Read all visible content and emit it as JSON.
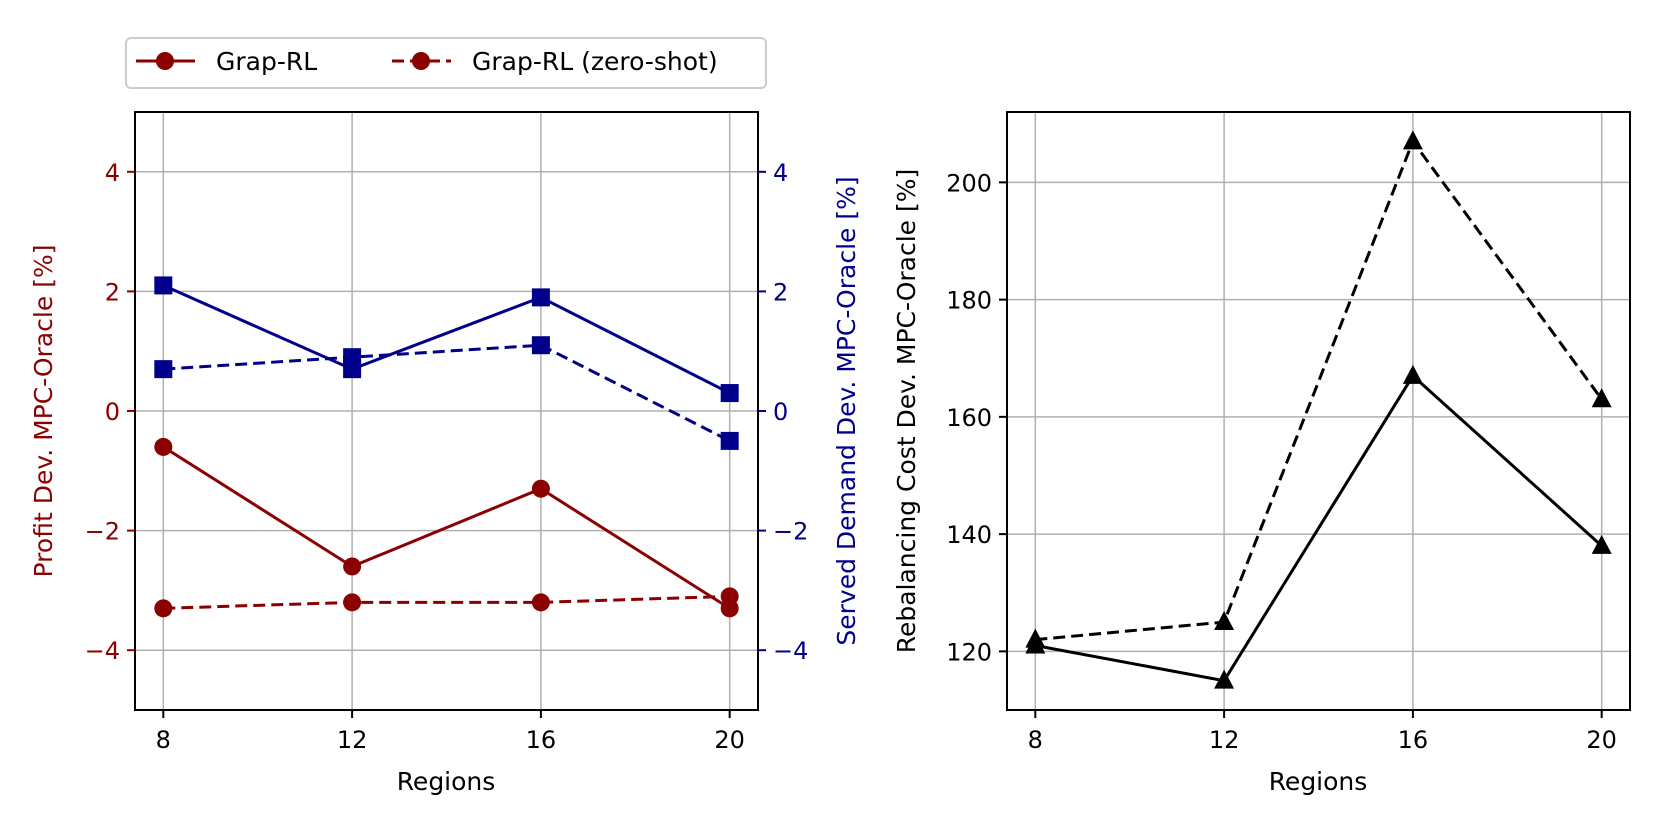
{
  "legend": {
    "entries": [
      {
        "label": "Grap-RL",
        "style": "solid"
      },
      {
        "label": "Grap-RL (zero-shot)",
        "style": "dashed"
      }
    ]
  },
  "colors": {
    "profit": "#8b0000",
    "served": "#00008b",
    "rebal": "#000000",
    "grid": "#b0b0b0"
  },
  "chart_data": [
    {
      "type": "line",
      "twin_y": true,
      "xlabel": "Regions",
      "ylabel_left": "Profit Dev. MPC-Oracle [%]",
      "ylabel_right": "Served Demand Dev. MPC-Oracle [%]",
      "x": [
        8,
        12,
        16,
        20
      ],
      "xticks": [
        "8",
        "12",
        "16",
        "20"
      ],
      "xlim": [
        7.4,
        20.6
      ],
      "ylim": [
        -5,
        5
      ],
      "yticks": [
        -4,
        -2,
        0,
        2,
        4
      ],
      "ytick_labels": [
        "−4",
        "−2",
        "0",
        "2",
        "4"
      ],
      "grid": true,
      "series": [
        {
          "name": "Grap-RL",
          "metric": "profit",
          "axis": "left",
          "style": "solid",
          "marker": "circle",
          "values": [
            -0.6,
            -2.6,
            -1.3,
            -3.3
          ]
        },
        {
          "name": "Grap-RL (zero-shot)",
          "metric": "profit",
          "axis": "left",
          "style": "dashed",
          "marker": "circle",
          "values": [
            -3.3,
            -3.2,
            -3.2,
            -3.1
          ]
        },
        {
          "name": "Grap-RL",
          "metric": "served",
          "axis": "right",
          "style": "solid",
          "marker": "square",
          "values": [
            2.1,
            0.7,
            1.9,
            0.3
          ]
        },
        {
          "name": "Grap-RL (zero-shot)",
          "metric": "served",
          "axis": "right",
          "style": "dashed",
          "marker": "square",
          "values": [
            0.7,
            0.9,
            1.1,
            -0.5
          ]
        }
      ]
    },
    {
      "type": "line",
      "xlabel": "Regions",
      "ylabel": "Rebalancing Cost Dev. MPC-Oracle [%]",
      "x": [
        8,
        12,
        16,
        20
      ],
      "xticks": [
        "8",
        "12",
        "16",
        "20"
      ],
      "xlim": [
        7.4,
        20.6
      ],
      "ylim": [
        110,
        212
      ],
      "yticks": [
        120,
        140,
        160,
        180,
        200
      ],
      "ytick_labels": [
        "120",
        "140",
        "160",
        "180",
        "200"
      ],
      "grid": true,
      "series": [
        {
          "name": "Grap-RL",
          "style": "solid",
          "marker": "triangle",
          "values": [
            121,
            115,
            167,
            138
          ]
        },
        {
          "name": "Grap-RL (zero-shot)",
          "style": "dashed",
          "marker": "triangle",
          "values": [
            122,
            125,
            207,
            163
          ]
        }
      ]
    }
  ]
}
